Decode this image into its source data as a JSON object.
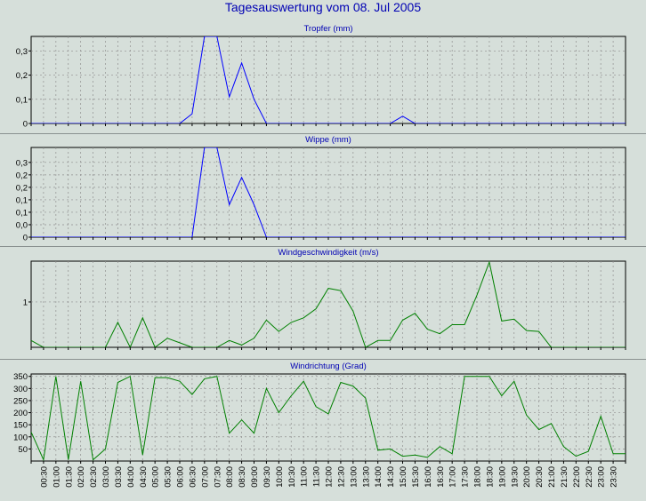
{
  "page": {
    "title": "Tagesauswertung vom 08. Jul 2005"
  },
  "colors": {
    "background": "#d6dfda",
    "title_blue": "#0000b4",
    "rain_blue": "#0000ff",
    "wind_green": "#008000",
    "grid": "#8f8f8f"
  },
  "chart_data": [
    {
      "type": "line",
      "title": "Tropfer (mm)",
      "series_color": "#0000ff",
      "ylim": [
        0,
        0.36
      ],
      "yticks": [
        0,
        0.1,
        0.2,
        0.3
      ],
      "yticklabels": [
        "0",
        "0,1",
        "0,2",
        "0,3"
      ],
      "grid": true,
      "x": [
        0,
        1,
        2,
        3,
        4,
        5,
        6,
        7,
        8,
        9,
        10,
        11,
        12,
        13,
        14,
        15,
        16,
        17,
        18,
        19,
        20,
        21,
        22,
        23,
        24,
        25,
        26,
        27,
        28,
        29,
        30,
        31,
        32,
        33,
        34,
        35,
        36,
        37,
        38,
        39,
        40,
        41,
        42,
        43,
        44,
        45,
        46,
        47,
        48
      ],
      "values": [
        0,
        0,
        0,
        0,
        0,
        0,
        0,
        0,
        0,
        0,
        0,
        0,
        0,
        0.04,
        0.36,
        0.36,
        0.11,
        0.25,
        0.1,
        0,
        0,
        0,
        0,
        0,
        0,
        0,
        0,
        0,
        0,
        0,
        0.03,
        0,
        0,
        0,
        0,
        0,
        0,
        0,
        0,
        0,
        0,
        0,
        0,
        0,
        0,
        0,
        0,
        0,
        0
      ]
    },
    {
      "type": "line",
      "title": "Wippe (mm)",
      "series_color": "#0000ff",
      "ylim": [
        0,
        0.36
      ],
      "yticks": [
        0,
        0.05,
        0.1,
        0.15,
        0.2,
        0.25,
        0.3
      ],
      "yticklabels": [
        "0",
        "0,0",
        "0,1",
        "0,1",
        "0,2",
        "0,2",
        "0,3"
      ],
      "grid": true,
      "x": [
        0,
        1,
        2,
        3,
        4,
        5,
        6,
        7,
        8,
        9,
        10,
        11,
        12,
        13,
        14,
        15,
        16,
        17,
        18,
        19,
        20,
        21,
        22,
        23,
        24,
        25,
        26,
        27,
        28,
        29,
        30,
        31,
        32,
        33,
        34,
        35,
        36,
        37,
        38,
        39,
        40,
        41,
        42,
        43,
        44,
        45,
        46,
        47,
        48
      ],
      "values": [
        0,
        0,
        0,
        0,
        0,
        0,
        0,
        0,
        0,
        0,
        0,
        0,
        0,
        0,
        0.36,
        0.36,
        0.13,
        0.24,
        0.13,
        0,
        0,
        0,
        0,
        0,
        0,
        0,
        0,
        0,
        0,
        0,
        0,
        0,
        0,
        0,
        0,
        0,
        0,
        0,
        0,
        0,
        0,
        0,
        0,
        0,
        0,
        0,
        0,
        0,
        0
      ]
    },
    {
      "type": "line",
      "title": "Windgeschwindigkeit (m/s)",
      "series_color": "#008000",
      "ylim": [
        0,
        1.9
      ],
      "yticks": [
        1
      ],
      "yticklabels": [
        "1"
      ],
      "grid": true,
      "x": [
        0,
        1,
        2,
        3,
        4,
        5,
        6,
        7,
        8,
        9,
        10,
        11,
        12,
        13,
        14,
        15,
        16,
        17,
        18,
        19,
        20,
        21,
        22,
        23,
        24,
        25,
        26,
        27,
        28,
        29,
        30,
        31,
        32,
        33,
        34,
        35,
        36,
        37,
        38,
        39,
        40,
        41,
        42,
        43,
        44,
        45,
        46,
        47,
        48
      ],
      "values": [
        0.15,
        0,
        0,
        0,
        0,
        0,
        0,
        0.55,
        0,
        0.65,
        0,
        0.2,
        0.1,
        0,
        0,
        0,
        0.15,
        0.05,
        0.2,
        0.6,
        0.35,
        0.55,
        0.65,
        0.85,
        1.3,
        1.25,
        0.8,
        0,
        0.15,
        0.15,
        0.6,
        0.75,
        0.4,
        0.3,
        0.5,
        0.5,
        1.15,
        1.88,
        0.58,
        0.62,
        0.37,
        0.35,
        0,
        0,
        0,
        0,
        0,
        0,
        0
      ]
    },
    {
      "type": "line",
      "title": "Windrichtung (Grad)",
      "series_color": "#008000",
      "ylim": [
        0,
        360
      ],
      "yticks": [
        50,
        100,
        150,
        200,
        250,
        300,
        350
      ],
      "yticklabels": [
        "50",
        "100",
        "150",
        "200",
        "250",
        "300",
        "350"
      ],
      "grid": true,
      "x": [
        0,
        1,
        2,
        3,
        4,
        5,
        6,
        7,
        8,
        9,
        10,
        11,
        12,
        13,
        14,
        15,
        16,
        17,
        18,
        19,
        20,
        21,
        22,
        23,
        24,
        25,
        26,
        27,
        28,
        29,
        30,
        31,
        32,
        33,
        34,
        35,
        36,
        37,
        38,
        39,
        40,
        41,
        42,
        43,
        44,
        45,
        46,
        47,
        48
      ],
      "values": [
        120,
        5,
        350,
        5,
        330,
        5,
        50,
        325,
        350,
        25,
        345,
        345,
        330,
        275,
        340,
        350,
        115,
        170,
        115,
        300,
        200,
        270,
        330,
        225,
        195,
        325,
        310,
        260,
        45,
        50,
        20,
        25,
        15,
        60,
        30,
        350,
        350,
        350,
        270,
        330,
        190,
        130,
        155,
        60,
        20,
        40,
        185,
        30,
        30
      ]
    }
  ],
  "x_axis": {
    "ticklabels": [
      "00:30",
      "01:00",
      "01:30",
      "02:00",
      "02:30",
      "03:00",
      "03:30",
      "04:00",
      "04:30",
      "05:00",
      "05:30",
      "06:00",
      "06:30",
      "07:00",
      "07:30",
      "08:00",
      "08:30",
      "09:00",
      "09:30",
      "10:00",
      "10:30",
      "11:00",
      "11:30",
      "12:00",
      "12:30",
      "13:00",
      "13:30",
      "14:00",
      "14:30",
      "15:00",
      "15:30",
      "16:00",
      "16:30",
      "17:00",
      "17:30",
      "18:00",
      "18:30",
      "19:00",
      "19:30",
      "20:00",
      "20:30",
      "21:00",
      "21:30",
      "22:00",
      "22:30",
      "23:00",
      "23:30"
    ]
  }
}
